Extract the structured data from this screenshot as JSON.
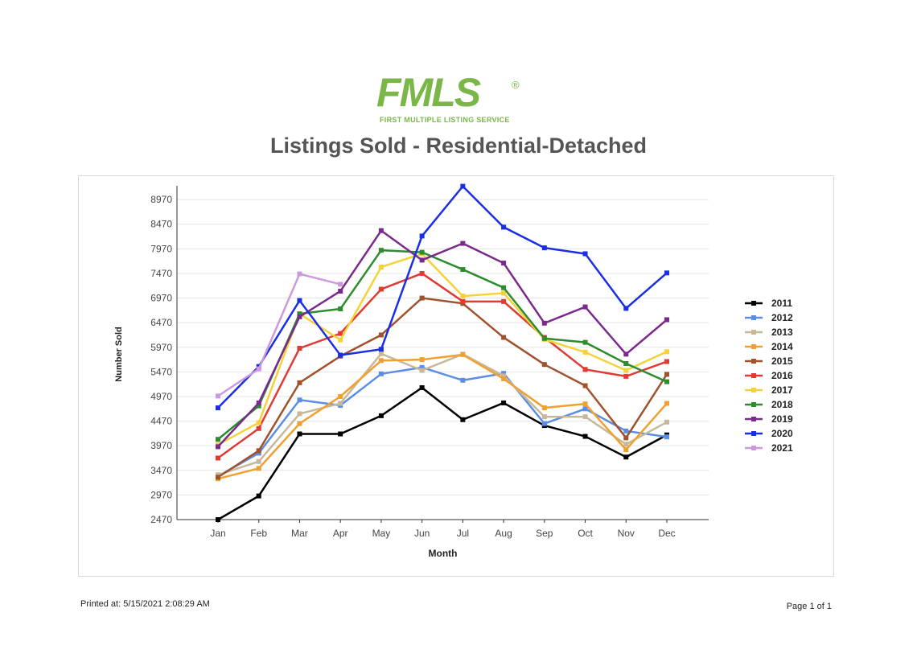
{
  "header": {
    "logo_text": "FMLS",
    "logo_registered": "®",
    "logo_subtitle": "FIRST MULTIPLE LISTING SERVICE",
    "title": "Listings Sold - Residential-Detached"
  },
  "footer": {
    "printed_label": "Printed at:",
    "printed_value": "5/15/2021 2:08:29 AM",
    "page": "Page 1 of 1"
  },
  "chart_data": {
    "type": "line",
    "title": "Listings Sold - Residential-Detached",
    "xlabel": "Month",
    "ylabel": "Number Sold",
    "categories": [
      "Jan",
      "Feb",
      "Mar",
      "Apr",
      "May",
      "Jun",
      "Jul",
      "Aug",
      "Sep",
      "Oct",
      "Nov",
      "Dec"
    ],
    "yticks": [
      2470,
      2970,
      3470,
      3970,
      4470,
      4970,
      5470,
      5970,
      6470,
      6970,
      7470,
      7970,
      8470,
      8970
    ],
    "ylim": [
      2470,
      9250
    ],
    "grid": true,
    "legend_position": "right",
    "series": [
      {
        "name": "2011",
        "color": "#000000",
        "values": [
          2470,
          2950,
          4210,
          4210,
          4580,
          5150,
          4500,
          4840,
          4380,
          4160,
          3740,
          4190
        ]
      },
      {
        "name": "2012",
        "color": "#5b8ee6",
        "values": [
          3350,
          3820,
          4900,
          4790,
          5430,
          5560,
          5300,
          5440,
          4420,
          4720,
          4270,
          4150
        ]
      },
      {
        "name": "2013",
        "color": "#c8b89a",
        "values": [
          3380,
          3650,
          4620,
          4830,
          5840,
          5500,
          5830,
          5390,
          4560,
          4560,
          4000,
          4450
        ]
      },
      {
        "name": "2014",
        "color": "#f0a030",
        "values": [
          3300,
          3510,
          4420,
          4970,
          5700,
          5720,
          5820,
          5330,
          4740,
          4820,
          3890,
          4830
        ]
      },
      {
        "name": "2015",
        "color": "#a0522d",
        "values": [
          3330,
          3870,
          5250,
          5790,
          6220,
          6970,
          6860,
          6170,
          5620,
          5190,
          4130,
          5420
        ]
      },
      {
        "name": "2016",
        "color": "#e03a33",
        "values": [
          3720,
          4320,
          5950,
          6250,
          7150,
          7470,
          6900,
          6900,
          6170,
          5520,
          5380,
          5680
        ]
      },
      {
        "name": "2017",
        "color": "#f5d23a",
        "values": [
          3990,
          4440,
          6650,
          6120,
          7600,
          7870,
          7010,
          7070,
          6130,
          5870,
          5500,
          5880
        ]
      },
      {
        "name": "2018",
        "color": "#2e8b2e",
        "values": [
          4100,
          4780,
          6650,
          6750,
          7940,
          7900,
          7550,
          7180,
          6150,
          6070,
          5640,
          5270
        ]
      },
      {
        "name": "2019",
        "color": "#7a2a8c",
        "values": [
          3950,
          4840,
          6590,
          7110,
          8340,
          7740,
          8080,
          7680,
          6460,
          6790,
          5830,
          6530
        ]
      },
      {
        "name": "2020",
        "color": "#1a2ee6",
        "values": [
          4740,
          5580,
          6920,
          5810,
          5930,
          8230,
          9240,
          8410,
          7990,
          7870,
          6760,
          7480
        ]
      },
      {
        "name": "2021",
        "color": "#cc99dd",
        "values": [
          4980,
          5530,
          7460,
          7250,
          null,
          null,
          null,
          null,
          null,
          null,
          null,
          null
        ]
      }
    ]
  }
}
